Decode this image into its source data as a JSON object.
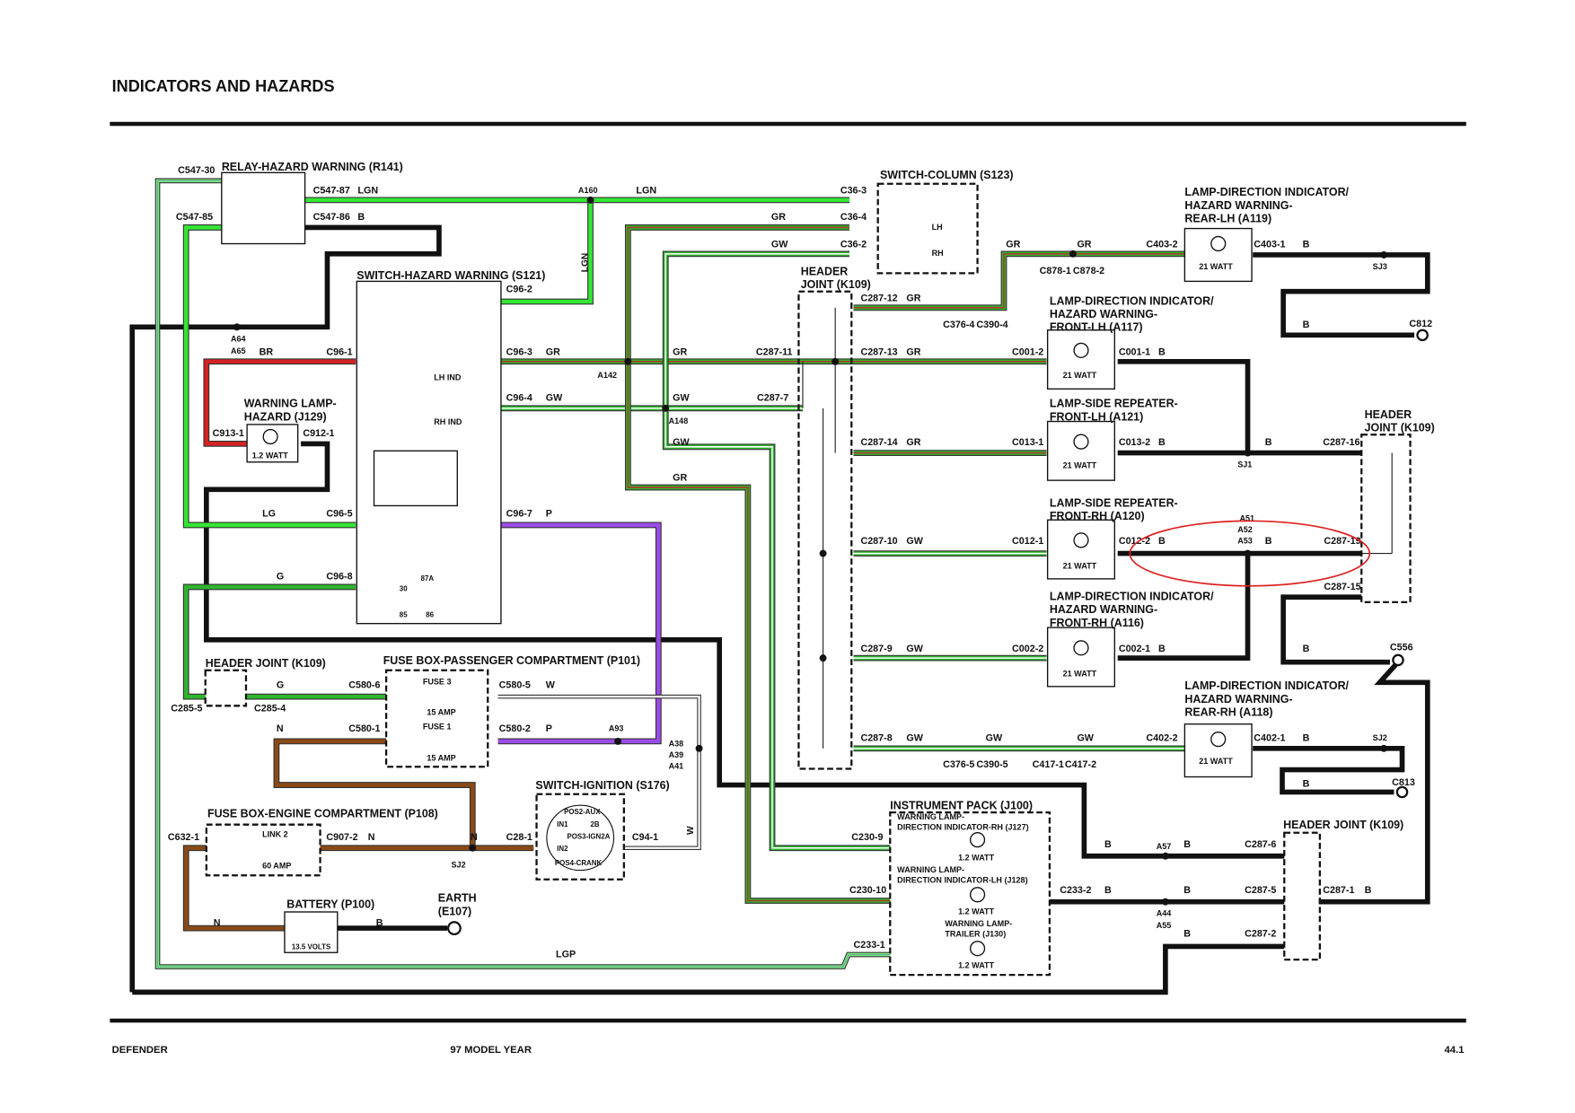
{
  "header": {
    "title": "INDICATORS AND HAZARDS"
  },
  "footer": {
    "left": "DEFENDER",
    "center": "97 MODEL YEAR",
    "right": "44.1"
  },
  "components": [
    {
      "lines": [
        "RELAY-HAZARD WARNING (R141)"
      ]
    },
    {
      "lines": [
        "SWITCH-HAZARD WARNING (S121)"
      ]
    },
    {
      "lines": [
        "WARNING LAMP-",
        "HAZARD (J129)"
      ]
    },
    {
      "lines": [
        "SWITCH-COLUMN (S123)"
      ]
    },
    {
      "lines": [
        "HEADER",
        "JOINT (K109)"
      ]
    },
    {
      "lines": [
        "LAMP-DIRECTION INDICATOR/",
        "HAZARD WARNING-",
        "REAR-LH (A119)"
      ]
    },
    {
      "lines": [
        "LAMP-DIRECTION INDICATOR/",
        "HAZARD WARNING-",
        "FRONT-LH (A117)"
      ]
    },
    {
      "lines": [
        "LAMP-SIDE REPEATER-",
        "FRONT-LH (A121)"
      ]
    },
    {
      "lines": [
        "LAMP-SIDE REPEATER-",
        "FRONT-RH (A120)"
      ]
    },
    {
      "lines": [
        "LAMP-DIRECTION INDICATOR/",
        "HAZARD WARNING-",
        "FRONT-RH (A116)"
      ]
    },
    {
      "lines": [
        "HEADER",
        "JOINT (K109)"
      ]
    },
    {
      "lines": [
        "LAMP-DIRECTION INDICATOR/",
        "HAZARD WARNING-",
        "REAR-RH (A118)"
      ]
    },
    {
      "lines": [
        "HEADER JOINT (K109)"
      ]
    },
    {
      "lines": [
        "FUSE BOX-PASSENGER COMPARTMENT (P101)"
      ]
    },
    {
      "lines": [
        "SWITCH-IGNITION (S176)"
      ]
    },
    {
      "lines": [
        "FUSE BOX-ENGINE COMPARTMENT (P108)"
      ]
    },
    {
      "lines": [
        "INSTRUMENT PACK (J100)"
      ]
    },
    {
      "lines": [
        "HEADER JOINT (K109)"
      ]
    },
    {
      "lines": [
        "BATTERY (P100)"
      ]
    },
    {
      "lines": [
        "EARTH",
        "(E107)"
      ]
    }
  ],
  "labels": [
    "C547-30",
    "C547-87",
    "LGN",
    "C547-85",
    "C547-86",
    "B",
    "A160",
    "LGN",
    "C36-3",
    "GR",
    "C36-4",
    "GW",
    "C36-2",
    "LH",
    "RH",
    "C96-2",
    "LGN",
    "A64",
    "A65",
    "BR",
    "C96-1",
    "C96-3",
    "GR",
    "A142",
    "GR",
    "C287-11",
    "LH IND",
    "C96-4",
    "GW",
    "GW",
    "C287-7",
    "RH IND",
    "A148",
    "GW",
    "GR",
    "C913-1",
    "C912-1",
    "1.2 WATT",
    "LG",
    "C96-5",
    "C96-7",
    "P",
    "G",
    "C96-8",
    "30",
    "87A",
    "85",
    "86",
    "C287-12",
    "GR",
    "C376-4",
    "C390-4",
    "GR",
    "GR",
    "C878-1",
    "C878-2",
    "C403-2",
    "21 WATT",
    "C403-1",
    "B",
    "SJ3",
    "B",
    "C812",
    "C287-13",
    "GR",
    "C001-2",
    "21 WATT",
    "C001-1",
    "B",
    "C287-14",
    "GR",
    "C013-1",
    "21 WATT",
    "C013-2",
    "B",
    "B",
    "SJ1",
    "C287-16",
    "C287-10",
    "GW",
    "C012-1",
    "21 WATT",
    "C012-2",
    "B",
    "A51",
    "A52",
    "A53",
    "B",
    "C287-19",
    "C287-15",
    "C287-9",
    "GW",
    "C002-2",
    "21 WATT",
    "C002-1",
    "B",
    "B",
    "C556",
    "C287-8",
    "GW",
    "GW",
    "GW",
    "C376-5",
    "C390-5",
    "C417-1",
    "C417-2",
    "C402-2",
    "21 WATT",
    "C402-1",
    "B",
    "SJ2",
    "B",
    "C813",
    "G",
    "C580-6",
    "C285-5",
    "C285-4",
    "FUSE 3",
    "15 AMP",
    "FUSE 1",
    "15 AMP",
    "C580-5",
    "W",
    "N",
    "C580-1",
    "C580-2",
    "P",
    "A93",
    "A38",
    "A39",
    "A41",
    "POS2-AUX",
    "IN1",
    "2B",
    "POS3-IGN2A",
    "IN2",
    "POS4-CRANK",
    "C94-1",
    "W",
    "C28-1",
    "LINK 2",
    "60 AMP",
    "C632-1",
    "C907-2",
    "N",
    "SJ2",
    "N",
    "N",
    "B",
    "13.5 VOLTS",
    "LGP",
    "C230-9",
    "C230-10",
    "C233-1",
    "C233-2",
    "B",
    "WARNING LAMP-",
    "DIRECTION INDICATOR-RH (J127)",
    "1.2 WATT",
    "WARNING LAMP-",
    "DIRECTION INDICATOR-LH (J128)",
    "1.2 WATT",
    "WARNING LAMP-",
    "TRAILER (J130)",
    "1.2 WATT",
    "B",
    "A57",
    "B",
    "C287-6",
    "A44",
    "A55",
    "B",
    "C287-5",
    "B",
    "C287-2",
    "C287-1",
    "B"
  ]
}
